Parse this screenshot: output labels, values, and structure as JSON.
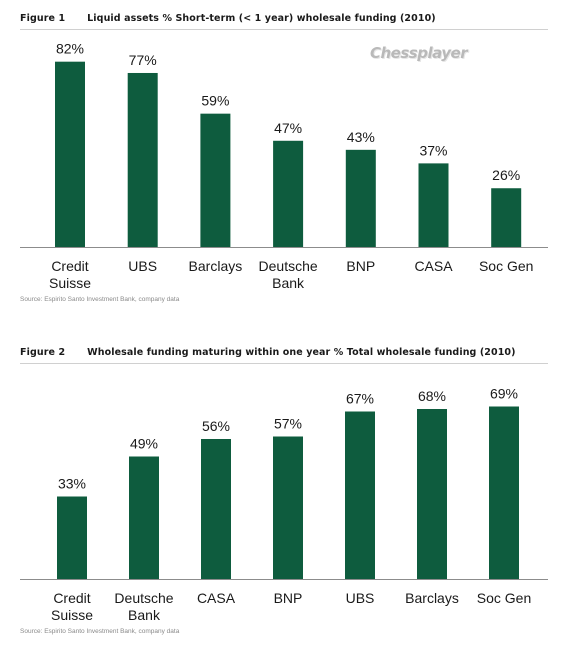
{
  "watermark": "Chessplayer",
  "figures": [
    {
      "label": "Figure 1",
      "title": "Liquid assets % Short-term (< 1 year) wholesale funding (2010)",
      "source": "Source: Espirito Santo Investment Bank, company data"
    },
    {
      "label": "Figure 2",
      "title": "Wholesale funding maturing within one year % Total wholesale funding (2010)",
      "source": "Source: Espirito Santo Investment Bank, company data"
    }
  ],
  "chart_data": [
    {
      "type": "bar",
      "title": "Liquid assets % Short-term (< 1 year) wholesale funding (2010)",
      "categories": [
        "Credit Suisse",
        "UBS",
        "Barclays",
        "Deutsche Bank",
        "BNP",
        "CASA",
        "Soc Gen"
      ],
      "values": [
        82,
        77,
        59,
        47,
        43,
        37,
        26
      ],
      "data_labels": [
        "82%",
        "77%",
        "59%",
        "47%",
        "43%",
        "37%",
        "26%"
      ],
      "unit": "%",
      "ylim": [
        0,
        100
      ],
      "grid": false,
      "legend": "none",
      "bar_color": "#0e5c3e"
    },
    {
      "type": "bar",
      "title": "Wholesale funding maturing within one year % Total wholesale funding (2010)",
      "categories": [
        "Credit Suisse",
        "Deutsche Bank",
        "CASA",
        "BNP",
        "UBS",
        "Barclays",
        "Soc Gen"
      ],
      "values": [
        33,
        49,
        56,
        57,
        67,
        68,
        69
      ],
      "data_labels": [
        "33%",
        "49%",
        "56%",
        "57%",
        "67%",
        "68%",
        "69%"
      ],
      "unit": "%",
      "ylim": [
        0,
        100
      ],
      "grid": false,
      "legend": "none",
      "bar_color": "#0e5c3e"
    }
  ]
}
